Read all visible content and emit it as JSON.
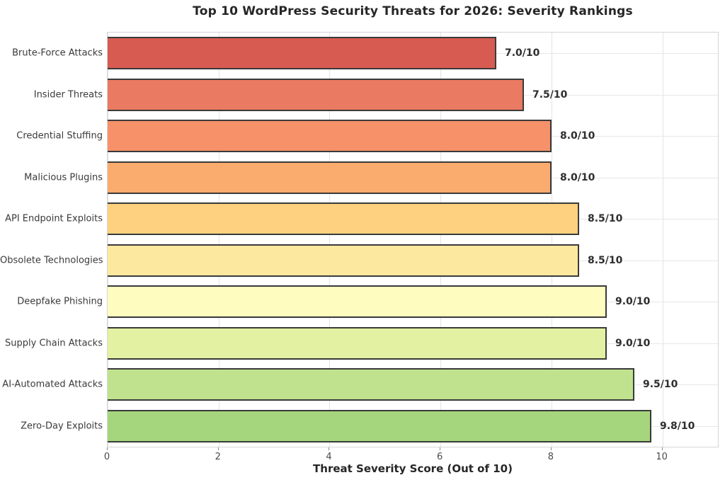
{
  "chart_data": {
    "type": "bar",
    "orientation": "horizontal",
    "title": "Top 10 WordPress Security Threats for 2026: Severity Rankings",
    "xlabel": "Threat Severity Score (Out of 10)",
    "ylabel": "",
    "categories": [
      "Brute-Force Attacks",
      "Insider Threats",
      "Credential Stuffing",
      "Malicious Plugins",
      "API Endpoint Exploits",
      "Obsolete Technologies",
      "Deepfake Phishing",
      "Supply Chain Attacks",
      "AI-Automated Attacks",
      "Zero-Day Exploits"
    ],
    "values": [
      7.0,
      7.5,
      8.0,
      8.0,
      8.5,
      8.5,
      9.0,
      9.0,
      9.5,
      9.8
    ],
    "value_labels": [
      "7.0/10",
      "7.5/10",
      "8.0/10",
      "8.0/10",
      "8.5/10",
      "8.5/10",
      "9.0/10",
      "9.0/10",
      "9.5/10",
      "9.8/10"
    ],
    "bar_colors": [
      "#d85b51",
      "#ea7a62",
      "#f69169",
      "#faab6e",
      "#fdd17f",
      "#fde8a0",
      "#fefcbe",
      "#e2f1a2",
      "#c0e28f",
      "#a5d67d"
    ],
    "bar_edge_color": "#3a3a3a",
    "xlim": [
      0,
      11
    ],
    "xticks": [
      "0",
      "2",
      "4",
      "6",
      "8",
      "10"
    ],
    "xtick_values": [
      0,
      2,
      4,
      6,
      8,
      10
    ],
    "grid": true,
    "legend": "none",
    "background_color": "#ffffff",
    "gridline_color": "#e5e5e5"
  }
}
